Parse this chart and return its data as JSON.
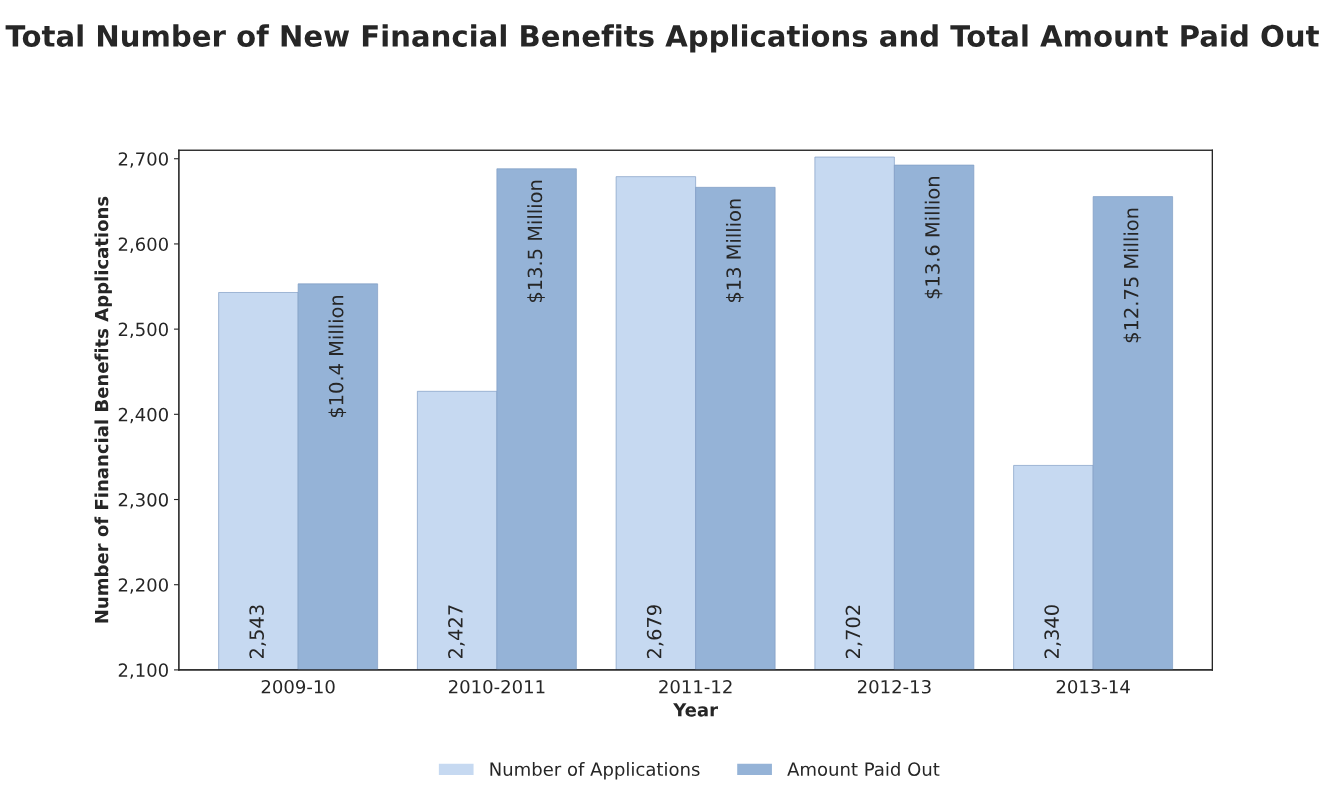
{
  "chart_data": {
    "type": "bar",
    "title": "Total Number of New Financial Benefits Applications and Total Amount Paid Out",
    "xlabel": "Year",
    "ylabel": "Number of Financial Benefits Applications",
    "categories": [
      "2009-10",
      "2010-2011",
      "2011-12",
      "2012-13",
      "2013-14"
    ],
    "series": [
      {
        "name": "Number of Applications",
        "color": "#c6d9f1",
        "values": [
          2543,
          2427,
          2679,
          2702,
          2340
        ],
        "value_labels": [
          "2,543",
          "2,427",
          "2,679",
          "2,702",
          "2,340"
        ]
      },
      {
        "name": "Amount Paid Out",
        "color": "#95b3d7",
        "axis": "y2",
        "values": [
          10.4,
          13.5,
          13,
          13.6,
          12.75
        ],
        "value_labels": [
          "$10.4 Million",
          "$13.5 Million",
          "$13 Million",
          "$13.6 Million",
          "$12.75 Million"
        ]
      }
    ],
    "ylim": [
      2100,
      2710
    ],
    "yticks": [
      {
        "value": 2100,
        "label": "2,100"
      },
      {
        "value": 2200,
        "label": "2,200"
      },
      {
        "value": 2300,
        "label": "2,300"
      },
      {
        "value": 2400,
        "label": "2,400"
      },
      {
        "value": 2500,
        "label": "2,500"
      },
      {
        "value": 2600,
        "label": "2,600"
      },
      {
        "value": 2700,
        "label": "2,700"
      }
    ],
    "y2lim": [
      0,
      14
    ],
    "grid": false,
    "legend": "bottom"
  }
}
